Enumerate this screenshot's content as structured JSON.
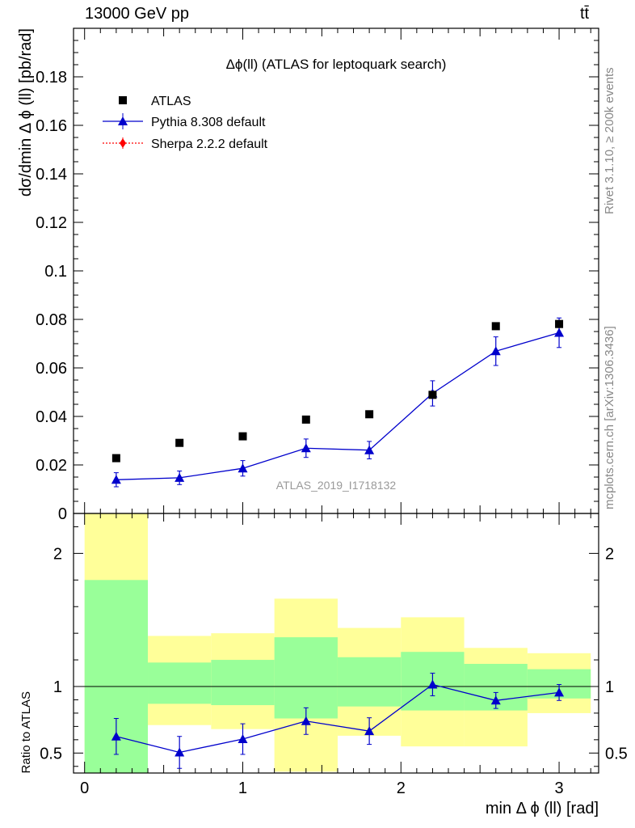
{
  "header": {
    "energy_label": "13000 GeV pp",
    "process_label": "tt̄"
  },
  "side_labels": {
    "rivet": "Rivet 3.1.10, ≥ 200k events",
    "mcplots": "mcplots.cern.ch [arXiv:1306.3436]"
  },
  "chart_data": [
    {
      "type": "scatter",
      "panel": "main",
      "title": "Δϕ(ll) (ATLAS for leptoquark search)",
      "ylabel": "dσ/dmin Δ ϕ (ll) [pb/rad]",
      "watermark": "ATLAS_2019_I1718132",
      "xlim": [
        -0.07,
        3.25
      ],
      "ylim": [
        0,
        0.2
      ],
      "yticks": [
        0,
        0.02,
        0.04,
        0.06,
        0.08,
        0.1,
        0.12,
        0.14,
        0.16,
        0.18
      ],
      "ytick_labels": [
        "0",
        "0.02",
        "0.04",
        "0.06",
        "0.08",
        "0.1",
        "0.12",
        "0.14",
        "0.16",
        "0.18"
      ],
      "legend_position": "top-left",
      "bin_edges": [
        0,
        0.4,
        0.8,
        1.2,
        1.6,
        2.0,
        2.4,
        2.8,
        3.2
      ],
      "series": [
        {
          "name": "ATLAS",
          "style": "square-markers",
          "color": "#000000",
          "x": [
            0.2,
            0.6,
            1.0,
            1.4,
            1.8,
            2.2,
            2.6,
            3.0
          ],
          "y": [
            0.0228,
            0.0291,
            0.0318,
            0.0387,
            0.0409,
            0.0489,
            0.0772,
            0.0781
          ]
        },
        {
          "name": "Pythia 8.308 default",
          "style": "line-triangle",
          "color": "#0000cc",
          "x": [
            0.2,
            0.6,
            1.0,
            1.4,
            1.8,
            2.2,
            2.6,
            3.0
          ],
          "y": [
            0.0139,
            0.0147,
            0.0186,
            0.0269,
            0.0261,
            0.0495,
            0.0669,
            0.0745
          ],
          "err": [
            0.0029,
            0.0028,
            0.0032,
            0.0038,
            0.0036,
            0.0052,
            0.0059,
            0.0061
          ]
        },
        {
          "name": "Sherpa 2.2.2 default",
          "style": "dotted-diamond",
          "color": "#ff0000",
          "x": [],
          "y": []
        }
      ]
    },
    {
      "type": "scatter",
      "panel": "ratio",
      "ylabel": "Ratio to ATLAS",
      "xlabel": "min Δ ϕ (ll) [rad]",
      "xlim": [
        -0.07,
        3.25
      ],
      "ylim": [
        0.35,
        2.3
      ],
      "yticks": [
        0.5,
        1,
        2
      ],
      "ytick_labels": [
        "0.5",
        "1",
        "2"
      ],
      "xticks": [
        0,
        1,
        2,
        3
      ],
      "xtick_labels": [
        "0",
        "1",
        "2",
        "3"
      ],
      "reference_line": 1,
      "bands": {
        "bin_edges": [
          0,
          0.4,
          0.8,
          1.2,
          1.6,
          2.0,
          2.4,
          2.8,
          3.2
        ],
        "yellow_low": [
          0.35,
          0.71,
          0.68,
          0.36,
          0.63,
          0.55,
          0.55,
          0.8
        ],
        "yellow_high": [
          2.3,
          1.38,
          1.4,
          1.66,
          1.44,
          1.52,
          1.29,
          1.25
        ],
        "green_low": [
          0.35,
          0.87,
          0.86,
          0.76,
          0.85,
          0.82,
          0.82,
          0.91
        ],
        "green_high": [
          1.8,
          1.18,
          1.2,
          1.37,
          1.22,
          1.26,
          1.17,
          1.13
        ],
        "yellow_color": "#ffff99",
        "green_color": "#99ff99"
      },
      "series": [
        {
          "name": "Pythia 8.308 default",
          "color": "#0000cc",
          "x": [
            0.2,
            0.6,
            1.0,
            1.4,
            1.8,
            2.2,
            2.6,
            3.0
          ],
          "y": [
            0.625,
            0.505,
            0.605,
            0.74,
            0.665,
            1.015,
            0.895,
            0.955
          ],
          "err": [
            0.135,
            0.12,
            0.115,
            0.1,
            0.1,
            0.085,
            0.06,
            0.06
          ]
        }
      ]
    }
  ]
}
